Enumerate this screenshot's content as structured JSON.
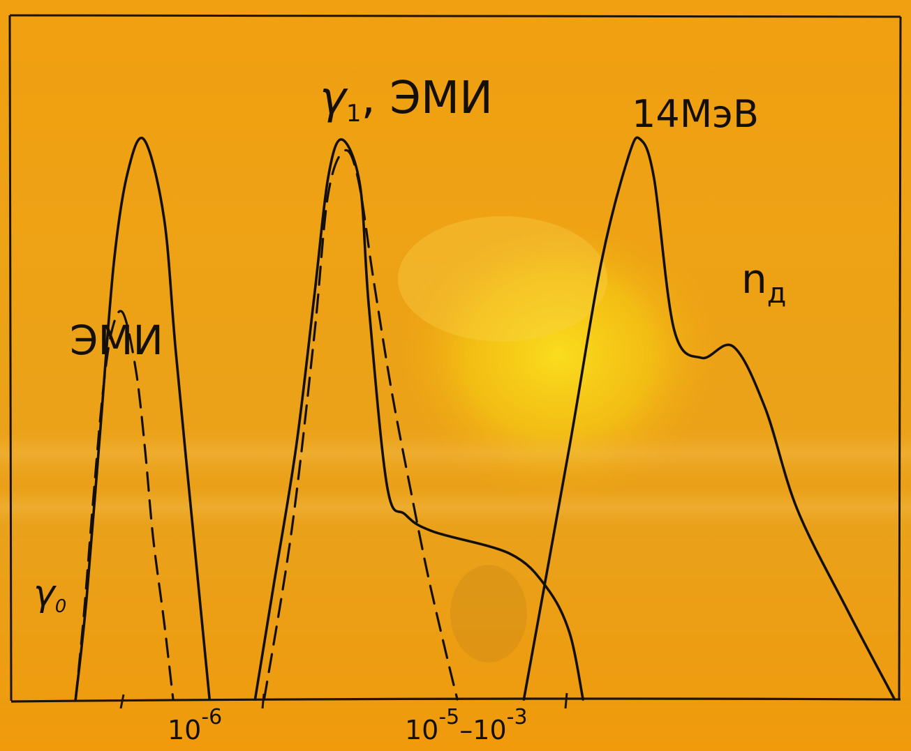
{
  "chart_data": {
    "type": "line",
    "title": "",
    "xlabel": "",
    "ylabel": "",
    "x_scale": "time (log, piecewise)",
    "x_ticks": [
      {
        "label": "10",
        "sup": "-6",
        "t": "1e-6"
      },
      {
        "label": "10",
        "sup": "-5",
        "label2": "–10",
        "sup2": "-3",
        "t": "1e-5 – 1e-3"
      }
    ],
    "curve_labels": [
      {
        "text": "ЭМИ"
      },
      {
        "text": "γ",
        "sub": "0"
      },
      {
        "text": "γ",
        "sub": "1",
        "suffix": ", ЭМИ"
      },
      {
        "text": "14МэВ"
      },
      {
        "text": "n",
        "sub": "д"
      }
    ],
    "series": [
      {
        "id": "emi-early",
        "style": "solid",
        "peak": 1.0,
        "x": [
          0.083,
          0.095,
          0.11,
          0.125,
          0.14,
          0.158,
          0.18,
          0.193,
          0.212,
          0.23
        ],
        "y": [
          0.0,
          0.18,
          0.48,
          0.78,
          0.94,
          1.0,
          0.86,
          0.62,
          0.3,
          0.0
        ]
      },
      {
        "id": "gamma0",
        "style": "dashed",
        "peak": 0.69,
        "x": [
          0.083,
          0.092,
          0.102,
          0.113,
          0.123,
          0.135,
          0.149,
          0.159,
          0.168,
          0.18,
          0.19
        ],
        "y": [
          0.0,
          0.15,
          0.35,
          0.55,
          0.66,
          0.69,
          0.59,
          0.45,
          0.29,
          0.14,
          0.0
        ]
      },
      {
        "id": "gamma1-emi",
        "style": "solid",
        "peak": 1.0,
        "x": [
          0.28,
          0.3,
          0.325,
          0.345,
          0.36,
          0.375,
          0.395,
          0.405,
          0.425,
          0.445,
          0.475,
          0.56,
          0.6,
          0.625,
          0.64
        ],
        "y": [
          0.0,
          0.2,
          0.45,
          0.72,
          0.93,
          1.0,
          0.92,
          0.7,
          0.38,
          0.33,
          0.3,
          0.26,
          0.2,
          0.12,
          0.0
        ]
      },
      {
        "id": "gamma1-dashed",
        "style": "dashed",
        "peak": 0.98,
        "x": [
          0.29,
          0.32,
          0.345,
          0.36,
          0.378,
          0.393,
          0.41,
          0.43,
          0.45,
          0.47,
          0.49,
          0.502
        ],
        "y": [
          0.0,
          0.3,
          0.65,
          0.9,
          0.98,
          0.93,
          0.75,
          0.55,
          0.38,
          0.22,
          0.08,
          0.0
        ]
      },
      {
        "id": "neutrons-14mev",
        "style": "solid",
        "peak": 1.0,
        "x": [
          0.575,
          0.625,
          0.66,
          0.69,
          0.703,
          0.718,
          0.74,
          0.77,
          0.805,
          0.84,
          0.875,
          0.93,
          0.982
        ],
        "y": [
          0.0,
          0.45,
          0.78,
          0.97,
          1.0,
          0.93,
          0.66,
          0.61,
          0.63,
          0.52,
          0.34,
          0.16,
          0.0
        ]
      }
    ]
  }
}
